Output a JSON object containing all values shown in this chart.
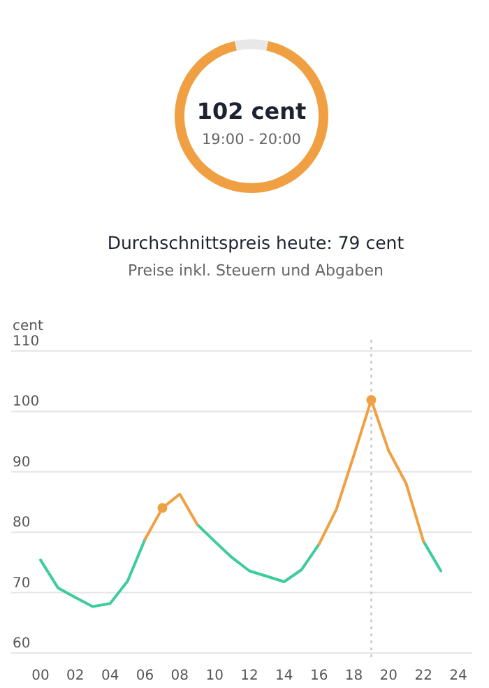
{
  "chart_data": [
    {
      "type": "donut",
      "categories": [
        null,
        null
      ],
      "values": [
        93,
        7
      ],
      "colors": [
        "#f0a043",
        "#e8e8e8"
      ],
      "annotations": [
        "102 cent",
        "19:00 - 20:00"
      ]
    },
    {
      "type": "line",
      "title": "Durchschnittspreis heute: 79 cent",
      "subtitle": "Preise inkl. Steuern und Abgaben",
      "ylabel": "cent",
      "x": [
        0,
        1,
        2,
        3,
        4,
        5,
        6,
        7,
        8,
        9,
        10,
        11,
        12,
        13,
        14,
        15,
        16,
        17,
        18,
        19,
        20,
        21,
        22,
        23
      ],
      "series": [
        {
          "color": "#3ecc9c",
          "values": [
            75.4,
            70.8,
            69.2,
            67.7,
            68.2,
            71.9,
            78.8,
            null,
            null,
            81.3,
            78.5,
            75.8,
            73.6,
            72.7,
            71.8,
            73.8,
            78,
            null,
            null,
            null,
            null,
            null,
            78.5,
            73.6
          ]
        },
        {
          "color": "#f0a043",
          "values": [
            null,
            null,
            null,
            null,
            null,
            null,
            78.8,
            84,
            86.3,
            81.3,
            null,
            null,
            null,
            null,
            null,
            null,
            78,
            83.8,
            92.7,
            101.9,
            93.5,
            88.1,
            78.5,
            null
          ]
        },
        {
          "type": "scatter",
          "color": "#f0a043",
          "x": [
            7,
            19
          ],
          "values": [
            84,
            101.9
          ],
          "marker": "circle"
        }
      ],
      "xlim": [
        0,
        24
      ],
      "xticks": [
        {
          "value": 0,
          "label": "00"
        },
        {
          "value": 2,
          "label": "02"
        },
        {
          "value": 4,
          "label": "04"
        },
        {
          "value": 6,
          "label": "06"
        },
        {
          "value": 8,
          "label": "08"
        },
        {
          "value": 10,
          "label": "10"
        },
        {
          "value": 12,
          "label": "12"
        },
        {
          "value": 14,
          "label": "14"
        },
        {
          "value": 16,
          "label": "16"
        },
        {
          "value": 18,
          "label": "18"
        },
        {
          "value": 20,
          "label": "20"
        },
        {
          "value": 22,
          "label": "22"
        },
        {
          "value": 24,
          "label": "24"
        }
      ],
      "ylim": [
        59,
        110
      ],
      "yticks": [
        60,
        70,
        80,
        90,
        100,
        110
      ],
      "grid": "y",
      "line_style": "solid",
      "ref_lines": [
        {
          "axis": "x",
          "value": 19,
          "color": "#bbbbbb",
          "line_style": "dotted"
        }
      ]
    }
  ]
}
